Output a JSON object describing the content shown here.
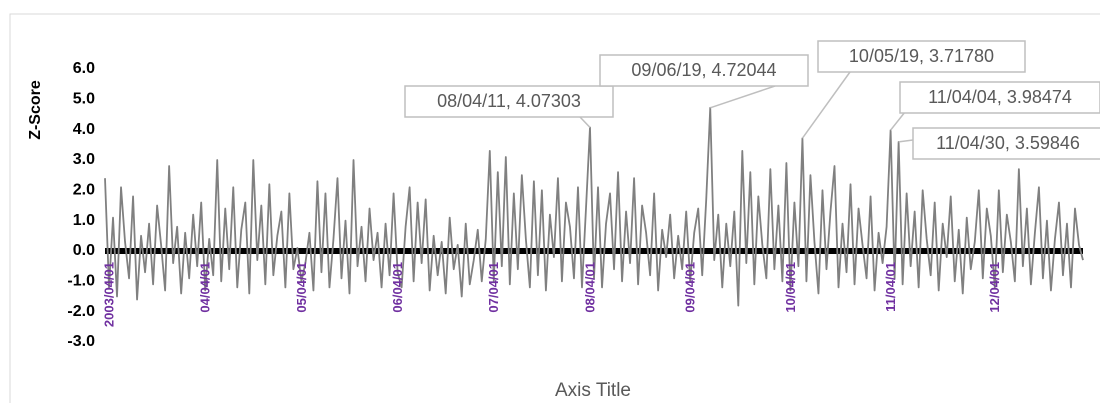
{
  "chart_data": {
    "type": "line",
    "y_label": "Z-Score",
    "x_label": "Axis Title",
    "x": [
      "2003/04/01",
      "03/04/16",
      "03/05/01",
      "03/05/16",
      "03/06/01",
      "03/06/16",
      "03/07/01",
      "03/07/16",
      "03/08/01",
      "03/08/16",
      "03/09/01",
      "03/09/16",
      "03/10/01",
      "03/10/16",
      "03/11/01",
      "03/11/16",
      "03/12/01",
      "03/12/16",
      "04/01/01",
      "04/01/16",
      "04/02/01",
      "04/02/16",
      "04/03/01",
      "04/03/16",
      "04/04/01",
      "04/04/16",
      "04/05/01",
      "04/05/16",
      "04/06/01",
      "04/06/16",
      "04/07/01",
      "04/07/16",
      "04/08/01",
      "04/08/16",
      "04/09/01",
      "04/09/16",
      "04/10/01",
      "04/10/16",
      "04/11/01",
      "04/11/16",
      "04/12/01",
      "04/12/16",
      "05/01/01",
      "05/01/16",
      "05/02/01",
      "05/02/16",
      "05/03/01",
      "05/03/16",
      "05/04/01",
      "05/04/16",
      "05/05/01",
      "05/05/16",
      "05/06/01",
      "05/06/16",
      "05/07/01",
      "05/07/16",
      "05/08/01",
      "05/08/16",
      "05/09/01",
      "05/09/16",
      "05/10/01",
      "05/10/16",
      "05/11/01",
      "05/11/16",
      "05/12/01",
      "05/12/16",
      "06/01/01",
      "06/01/16",
      "06/02/01",
      "06/02/16",
      "06/03/01",
      "06/03/16",
      "06/04/01",
      "06/04/16",
      "06/05/01",
      "06/05/16",
      "06/06/01",
      "06/06/16",
      "06/07/01",
      "06/07/16",
      "06/08/01",
      "06/08/16",
      "06/09/01",
      "06/09/16",
      "06/10/01",
      "06/10/16",
      "06/11/01",
      "06/11/16",
      "06/12/01",
      "06/12/16",
      "07/01/01",
      "07/01/16",
      "07/02/01",
      "07/02/16",
      "07/03/01",
      "07/03/16",
      "07/04/01",
      "07/04/16",
      "07/05/01",
      "07/05/16",
      "07/06/01",
      "07/06/16",
      "07/07/01",
      "07/07/16",
      "07/08/01",
      "07/08/16",
      "07/09/01",
      "07/09/16",
      "07/10/01",
      "07/10/16",
      "07/11/01",
      "07/11/16",
      "07/12/01",
      "07/12/16",
      "08/01/01",
      "08/01/16",
      "08/02/01",
      "08/02/16",
      "08/03/01",
      "08/03/16",
      "08/04/01",
      "08/04/11",
      "08/04/16",
      "08/05/01",
      "08/05/16",
      "08/06/01",
      "08/06/16",
      "08/07/01",
      "08/07/16",
      "08/08/01",
      "08/08/16",
      "08/09/01",
      "08/09/16",
      "08/10/01",
      "08/10/16",
      "08/11/01",
      "08/11/16",
      "08/12/01",
      "08/12/16",
      "09/01/01",
      "09/01/16",
      "09/02/01",
      "09/02/16",
      "09/03/01",
      "09/03/16",
      "09/04/01",
      "09/04/16",
      "09/05/01",
      "09/05/16",
      "09/06/01",
      "09/06/16",
      "09/06/19",
      "09/07/01",
      "09/07/16",
      "09/08/01",
      "09/08/16",
      "09/09/01",
      "09/09/16",
      "09/10/01",
      "09/10/16",
      "09/11/01",
      "09/11/16",
      "09/12/01",
      "09/12/16",
      "10/01/01",
      "10/01/16",
      "10/02/01",
      "10/02/16",
      "10/03/01",
      "10/03/16",
      "10/04/01",
      "10/04/16",
      "10/05/01",
      "10/05/16",
      "10/05/19",
      "10/06/01",
      "10/06/16",
      "10/07/01",
      "10/07/16",
      "10/08/01",
      "10/08/16",
      "10/09/01",
      "10/09/16",
      "10/10/01",
      "10/10/16",
      "10/11/01",
      "10/11/16",
      "10/12/01",
      "10/12/16",
      "11/01/01",
      "11/01/16",
      "11/02/01",
      "11/02/16",
      "11/03/01",
      "11/03/16",
      "11/04/01",
      "11/04/04",
      "11/04/16",
      "11/04/30",
      "11/05/01",
      "11/05/16",
      "11/06/01",
      "11/06/16",
      "11/07/01",
      "11/07/16",
      "11/08/01",
      "11/08/16",
      "11/09/01",
      "11/09/16",
      "11/10/01",
      "11/10/16",
      "11/11/01",
      "11/11/16",
      "11/12/01",
      "11/12/16",
      "12/01/01",
      "12/01/16",
      "12/02/01",
      "12/02/16",
      "12/03/01",
      "12/03/16",
      "12/04/01",
      "12/04/16",
      "12/05/01",
      "12/05/16",
      "12/06/01",
      "12/06/16",
      "12/07/01",
      "12/07/16",
      "12/08/01",
      "12/08/16",
      "12/09/01",
      "12/09/16",
      "12/10/01",
      "12/10/16",
      "12/11/01",
      "12/11/16",
      "12/12/01",
      "12/12/16",
      "13/01/01",
      "13/01/16",
      "13/02/01",
      "13/02/16",
      "13/03/01",
      "13/03/16"
    ],
    "series": [
      {
        "color": "#808080",
        "values": [
          2.4,
          -1.2,
          1.1,
          -1.5,
          2.1,
          0.3,
          -0.9,
          1.8,
          -1.6,
          0.5,
          -0.7,
          0.9,
          -1.1,
          1.5,
          0.2,
          -1.3,
          2.8,
          -0.4,
          0.8,
          -1.4,
          0.6,
          -0.9,
          1.2,
          -0.5,
          1.6,
          -1.3,
          0.4,
          -0.8,
          3.0,
          -1.0,
          1.4,
          -0.6,
          2.1,
          -1.2,
          0.7,
          1.6,
          -1.4,
          3.0,
          -0.3,
          1.5,
          -1.1,
          2.2,
          -0.8,
          0.5,
          1.3,
          -1.2,
          1.9,
          -0.6,
          0.1,
          -1.0,
          -0.4,
          0.6,
          -1.3,
          2.3,
          -0.7,
          1.9,
          -1.2,
          0.4,
          2.4,
          -0.9,
          1.0,
          -1.4,
          3.0,
          -0.5,
          0.8,
          -1.0,
          1.4,
          -0.3,
          0.6,
          -1.2,
          0.9,
          -0.8,
          1.9,
          -0.7,
          -1.2,
          0.8,
          2.1,
          -1.0,
          1.6,
          -0.4,
          1.7,
          -1.3,
          0.5,
          -0.8,
          0.3,
          -1.4,
          1.1,
          -0.6,
          0.2,
          -1.5,
          0.9,
          -1.1,
          -0.3,
          0.7,
          -1.0,
          0.4,
          3.3,
          -1.0,
          2.6,
          -0.5,
          3.1,
          -1.1,
          1.9,
          -0.6,
          2.5,
          0.4,
          -1.2,
          2.3,
          -0.8,
          2.0,
          -1.3,
          1.2,
          -0.2,
          2.4,
          -1.0,
          1.6,
          0.8,
          -0.9,
          2.1,
          -1.2,
          1.4,
          4.07303,
          -0.9,
          2.1,
          -1.2,
          0.9,
          1.9,
          -0.6,
          2.6,
          -1.0,
          1.3,
          -0.4,
          2.4,
          -1.1,
          1.5,
          0.6,
          -0.8,
          1.9,
          -1.3,
          0.7,
          -0.2,
          1.2,
          -0.9,
          0.5,
          -0.6,
          1.3,
          -1.0,
          0.6,
          1.4,
          -0.8,
          1.7,
          4.72044,
          -0.3,
          1.2,
          -1.2,
          0.9,
          -0.5,
          1.3,
          -1.8,
          3.3,
          -0.4,
          2.6,
          -1.1,
          1.8,
          0.2,
          -0.9,
          2.7,
          -0.6,
          1.5,
          -1.0,
          2.9,
          -1.3,
          1.6,
          -0.5,
          3.7178,
          -1.0,
          2.5,
          0.3,
          -1.4,
          2.0,
          -0.6,
          1.3,
          2.8,
          -1.2,
          0.9,
          -0.7,
          2.2,
          -1.1,
          1.4,
          0.2,
          -0.9,
          1.8,
          -1.3,
          0.6,
          -0.4,
          0.8,
          3.98474,
          -0.9,
          3.59846,
          -1.1,
          1.9,
          -0.5,
          1.3,
          -1.2,
          2.0,
          0.4,
          -0.8,
          1.6,
          -1.3,
          0.9,
          -0.2,
          1.8,
          -1.0,
          0.7,
          -1.4,
          1.1,
          -0.6,
          0.3,
          2.0,
          -0.9,
          1.4,
          0.5,
          -1.2,
          2.0,
          -0.7,
          1.2,
          0.3,
          -1.0,
          2.7,
          -0.5,
          1.4,
          -1.1,
          0.6,
          2.1,
          -0.9,
          1.0,
          -1.3,
          0.4,
          1.6,
          -0.8,
          0.9,
          -1.2,
          1.4,
          0.2,
          -0.3
        ]
      }
    ],
    "xticks": [
      "2003/04/01",
      "04/04/01",
      "05/04/01",
      "06/04/01",
      "07/04/01",
      "08/04/01",
      "09/04/01",
      "10/04/01",
      "11/04/01",
      "12/04/01"
    ],
    "ylim": [
      -3,
      6
    ],
    "yticks": [
      {
        "value": 6,
        "label": "6.0"
      },
      {
        "value": 5,
        "label": "5.0"
      },
      {
        "value": 4,
        "label": "4.0"
      },
      {
        "value": 3,
        "label": "3.0"
      },
      {
        "value": 2,
        "label": "2.0"
      },
      {
        "value": 1,
        "label": "1.0"
      },
      {
        "value": 0,
        "label": "0.0"
      },
      {
        "value": -1,
        "label": "-1.0"
      },
      {
        "value": -2,
        "label": "-2.0"
      },
      {
        "value": -3,
        "label": "-3.0"
      }
    ],
    "annotations": [
      {
        "text": "08/04/11, 4.07303",
        "x": "08/04/11"
      },
      {
        "text": "09/06/19, 4.72044",
        "x": "09/06/19"
      },
      {
        "text": "10/05/19, 3.71780",
        "x": "10/05/19"
      },
      {
        "text": "11/04/04, 3.98474",
        "x": "11/04/04"
      },
      {
        "text": "11/04/30, 3.59846",
        "x": "11/04/30"
      }
    ]
  }
}
